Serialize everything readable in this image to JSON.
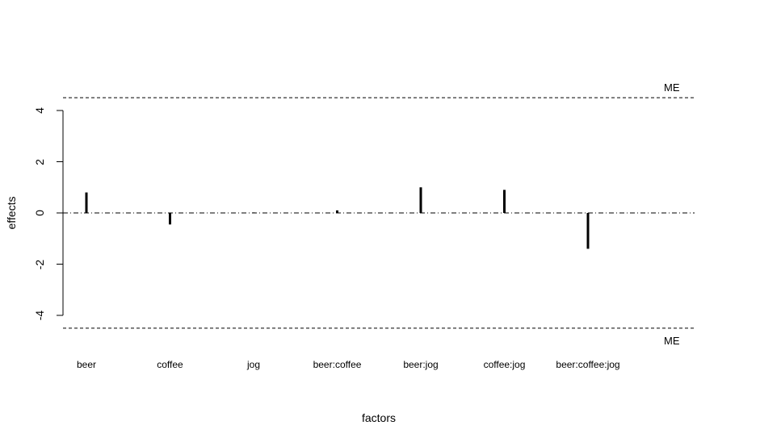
{
  "chart_data": {
    "type": "bar",
    "categories": [
      "beer",
      "coffee",
      "jog",
      "beer:coffee",
      "beer:jog",
      "coffee:jog",
      "beer:coffee:jog"
    ],
    "values": [
      0.8,
      -0.45,
      0.02,
      0.1,
      1.0,
      0.9,
      -1.4
    ],
    "xlabel": "factors",
    "ylabel": "effects",
    "ylim": [
      -4.6,
      4.3
    ],
    "yticks": [
      "-4",
      "-2",
      "0",
      "2",
      "4"
    ],
    "reference_lines": [
      {
        "label": "ME",
        "value": 4.5,
        "style": "dashed"
      },
      {
        "label": "ME",
        "value": -4.5,
        "style": "dashed"
      },
      {
        "value": 0,
        "style": "dash-dot"
      }
    ],
    "grid": false
  },
  "labels": {
    "me_top": "ME",
    "me_bottom": "ME"
  }
}
